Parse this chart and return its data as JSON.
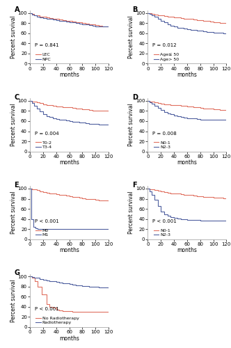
{
  "panel_A": {
    "label": "A",
    "p_value": "P = 0.841",
    "lines": [
      {
        "name": "LEC",
        "color": "#E07060",
        "x": [
          0,
          3,
          6,
          10,
          15,
          20,
          25,
          30,
          35,
          40,
          45,
          50,
          55,
          60,
          65,
          70,
          75,
          80,
          85,
          90,
          95,
          100,
          105,
          110,
          115,
          120
        ],
        "y": [
          100,
          98,
          96,
          95,
          93,
          92,
          91,
          90,
          89,
          88,
          87,
          86,
          85,
          84,
          83,
          82,
          81,
          80,
          79,
          78,
          77,
          76,
          75,
          74,
          73,
          73
        ]
      },
      {
        "name": "NPC",
        "color": "#5060A0",
        "x": [
          0,
          3,
          6,
          10,
          15,
          20,
          25,
          30,
          35,
          40,
          45,
          50,
          55,
          60,
          65,
          70,
          75,
          80,
          85,
          90,
          95,
          100,
          105,
          110,
          115,
          120
        ],
        "y": [
          100,
          97,
          95,
          93,
          91,
          90,
          89,
          88,
          87,
          86,
          85,
          84,
          83,
          82,
          81,
          80,
          79,
          78,
          77,
          76,
          75,
          74,
          73,
          73,
          73,
          73
        ]
      }
    ]
  },
  "panel_B": {
    "label": "B",
    "p_value": "P = 0.012",
    "lines": [
      {
        "name": "Age≤ 50",
        "color": "#E07060",
        "x": [
          0,
          3,
          6,
          10,
          15,
          20,
          25,
          30,
          35,
          40,
          45,
          50,
          55,
          60,
          65,
          70,
          75,
          80,
          85,
          90,
          95,
          100,
          105,
          110,
          115,
          120
        ],
        "y": [
          100,
          99,
          98,
          97,
          96,
          95,
          94,
          93,
          92,
          91,
          91,
          90,
          89,
          88,
          88,
          87,
          86,
          86,
          85,
          84,
          83,
          82,
          81,
          80,
          80,
          79
        ]
      },
      {
        "name": "Age> 50",
        "color": "#5060A0",
        "x": [
          0,
          3,
          6,
          10,
          15,
          20,
          25,
          30,
          35,
          40,
          45,
          50,
          55,
          60,
          65,
          70,
          75,
          80,
          85,
          90,
          95,
          100,
          105,
          110,
          115,
          120
        ],
        "y": [
          100,
          98,
          95,
          92,
          88,
          84,
          81,
          78,
          75,
          73,
          71,
          70,
          69,
          68,
          67,
          66,
          65,
          65,
          64,
          63,
          62,
          61,
          61,
          61,
          60,
          60
        ]
      }
    ]
  },
  "panel_C": {
    "label": "C",
    "p_value": "P = 0.004",
    "lines": [
      {
        "name": "T0-2",
        "color": "#E07060",
        "x": [
          0,
          3,
          6,
          10,
          15,
          20,
          25,
          30,
          35,
          40,
          45,
          50,
          55,
          60,
          65,
          70,
          75,
          80,
          85,
          90,
          95,
          100,
          105,
          110,
          115,
          120
        ],
        "y": [
          100,
          99,
          98,
          97,
          95,
          93,
          92,
          91,
          90,
          89,
          89,
          88,
          87,
          87,
          86,
          85,
          84,
          83,
          83,
          82,
          81,
          81,
          80,
          80,
          80,
          79
        ]
      },
      {
        "name": "T3-4",
        "color": "#5060A0",
        "x": [
          0,
          3,
          6,
          10,
          15,
          20,
          25,
          30,
          35,
          40,
          45,
          50,
          55,
          60,
          65,
          70,
          75,
          80,
          85,
          90,
          95,
          100,
          105,
          110,
          115,
          120
        ],
        "y": [
          100,
          95,
          90,
          85,
          79,
          74,
          70,
          68,
          66,
          64,
          63,
          62,
          61,
          60,
          59,
          58,
          57,
          57,
          56,
          55,
          55,
          54,
          53,
          53,
          53,
          53
        ]
      }
    ]
  },
  "panel_D": {
    "label": "D",
    "p_value": "P = 0.008",
    "lines": [
      {
        "name": "N0-1",
        "color": "#E07060",
        "x": [
          0,
          3,
          6,
          10,
          15,
          20,
          25,
          30,
          35,
          40,
          45,
          50,
          55,
          60,
          65,
          70,
          75,
          80,
          85,
          90,
          95,
          100,
          105,
          110,
          115,
          120
        ],
        "y": [
          100,
          99,
          98,
          97,
          96,
          94,
          93,
          93,
          92,
          91,
          91,
          90,
          90,
          89,
          89,
          88,
          87,
          86,
          85,
          84,
          84,
          83,
          83,
          82,
          82,
          82
        ]
      },
      {
        "name": "N2-3",
        "color": "#5060A0",
        "x": [
          0,
          3,
          6,
          10,
          15,
          20,
          25,
          30,
          35,
          40,
          45,
          50,
          55,
          60,
          65,
          70,
          75,
          80,
          85,
          90,
          95,
          100,
          105,
          110,
          115,
          120
        ],
        "y": [
          100,
          97,
          94,
          90,
          86,
          82,
          78,
          75,
          73,
          71,
          69,
          68,
          67,
          66,
          65,
          65,
          64,
          63,
          63,
          63,
          62,
          62,
          62,
          62,
          62,
          62
        ]
      }
    ]
  },
  "panel_E": {
    "label": "E",
    "p_value": "P < 0.001",
    "lines": [
      {
        "name": "M0",
        "color": "#E07060",
        "x": [
          0,
          3,
          6,
          10,
          15,
          20,
          25,
          30,
          35,
          40,
          45,
          50,
          55,
          60,
          65,
          70,
          75,
          80,
          85,
          90,
          95,
          100,
          105,
          110,
          115,
          120
        ],
        "y": [
          100,
          99,
          98,
          97,
          95,
          93,
          92,
          91,
          90,
          89,
          88,
          87,
          86,
          85,
          84,
          83,
          82,
          81,
          80,
          80,
          79,
          78,
          77,
          76,
          76,
          75
        ]
      },
      {
        "name": "M1",
        "color": "#5060A0",
        "x": [
          0,
          2,
          5,
          8,
          12,
          18,
          25,
          35,
          45,
          120
        ],
        "y": [
          100,
          40,
          25,
          22,
          21,
          21,
          20,
          20,
          20,
          20
        ]
      }
    ]
  },
  "panel_F": {
    "label": "F",
    "p_value": "P < 0.001",
    "lines": [
      {
        "name": "N0-1",
        "color": "#E07060",
        "x": [
          0,
          3,
          6,
          10,
          15,
          20,
          25,
          30,
          35,
          40,
          45,
          50,
          55,
          60,
          65,
          70,
          75,
          80,
          85,
          90,
          95,
          100,
          105,
          110,
          115,
          120
        ],
        "y": [
          100,
          99,
          98,
          97,
          96,
          94,
          93,
          92,
          91,
          90,
          90,
          89,
          88,
          88,
          87,
          86,
          85,
          85,
          84,
          84,
          83,
          82,
          82,
          82,
          81,
          81
        ]
      },
      {
        "name": "N2-3",
        "color": "#5060A0",
        "x": [
          0,
          3,
          6,
          10,
          15,
          20,
          25,
          30,
          35,
          40,
          45,
          50,
          55,
          60,
          65,
          70,
          75,
          80,
          85,
          90,
          95,
          100,
          105,
          110,
          115,
          120
        ],
        "y": [
          100,
          95,
          88,
          78,
          65,
          55,
          49,
          46,
          44,
          42,
          41,
          40,
          39,
          38,
          38,
          38,
          38,
          37,
          37,
          37,
          37,
          37,
          37,
          37,
          37,
          37
        ]
      }
    ]
  },
  "panel_G": {
    "label": "G",
    "p_value": "P < 0.001",
    "lines": [
      {
        "name": "No Radiotherapy",
        "color": "#E07060",
        "x": [
          0,
          3,
          7,
          12,
          18,
          25,
          30,
          35,
          40,
          45,
          50,
          55,
          60,
          65,
          70,
          120
        ],
        "y": [
          100,
          97,
          90,
          80,
          65,
          45,
          40,
          38,
          35,
          33,
          32,
          31,
          31,
          30,
          30,
          30
        ]
      },
      {
        "name": "Radiotherapy",
        "color": "#5060A0",
        "x": [
          0,
          3,
          6,
          10,
          15,
          20,
          25,
          30,
          35,
          40,
          45,
          50,
          55,
          60,
          65,
          70,
          75,
          80,
          85,
          90,
          95,
          100,
          105,
          110,
          115,
          120
        ],
        "y": [
          100,
          99,
          98,
          97,
          95,
          93,
          92,
          91,
          90,
          89,
          88,
          87,
          86,
          85,
          84,
          83,
          82,
          81,
          81,
          80,
          79,
          79,
          78,
          78,
          78,
          77
        ]
      }
    ]
  },
  "xlabel": "months",
  "ylabel": "Percent survival",
  "ylim": [
    0,
    105
  ],
  "xlim": [
    0,
    120
  ],
  "xticks": [
    0,
    20,
    40,
    60,
    80,
    100,
    120
  ],
  "yticks": [
    0,
    20,
    40,
    60,
    80,
    100
  ],
  "tick_fontsize": 5,
  "label_fontsize": 5.5,
  "legend_fontsize": 4.5,
  "pval_fontsize": 5,
  "panel_label_fontsize": 7,
  "line_width": 0.8,
  "spine_color": "#999999"
}
